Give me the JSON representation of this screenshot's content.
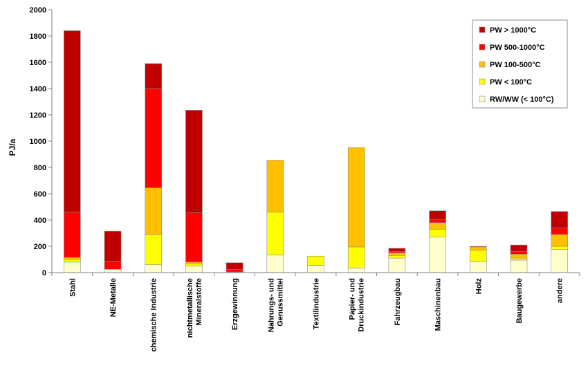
{
  "chart_data": {
    "type": "bar",
    "stacked": true,
    "title": "",
    "xlabel": "",
    "ylabel": "PJ/a",
    "ylim": [
      0,
      2000
    ],
    "yticks": [
      0,
      200,
      400,
      600,
      800,
      1000,
      1200,
      1400,
      1600,
      1800,
      2000
    ],
    "grid": false,
    "legend_position": "top-right",
    "categories": [
      "Stahl",
      "NE-Metalle",
      "chemische Industrie",
      "nichtmetallische Mineralstoffe",
      "Erzgewinnung",
      "Nahrungs- und Genussmittel",
      "Textilindustrie",
      "Papier- und Druckindustrie",
      "Fahrzeugbau",
      "Maschinenbau",
      "Holz",
      "Baugewerbe",
      "andere"
    ],
    "category_lines": [
      [
        "Stahl"
      ],
      [
        "NE-Metalle"
      ],
      [
        "chemische Industrie"
      ],
      [
        "nichtmetallische",
        "Mineralstoffe"
      ],
      [
        "Erzgewinnung"
      ],
      [
        "Nahrungs- und",
        "Genussmittel"
      ],
      [
        "Textilindustrie"
      ],
      [
        "Papier- und",
        "Druckindustrie"
      ],
      [
        "Fahrzeugbau"
      ],
      [
        "Maschinenbau"
      ],
      [
        "Holz"
      ],
      [
        "Baugewerbe"
      ],
      [
        "andere"
      ]
    ],
    "series": [
      {
        "name": "RW/WW (< 100°C)",
        "color": "#ffffcc",
        "values": [
          80,
          25,
          60,
          50,
          5,
          135,
          55,
          35,
          110,
          270,
          85,
          95,
          175
        ]
      },
      {
        "name": "PW < 100°C",
        "color": "#ffff00",
        "values": [
          20,
          0,
          230,
          15,
          0,
          325,
          70,
          160,
          20,
          60,
          85,
          15,
          25
        ]
      },
      {
        "name": "PW 100-500°C",
        "color": "#ffc000",
        "values": [
          15,
          0,
          355,
          15,
          0,
          395,
          0,
          755,
          20,
          50,
          25,
          30,
          90
        ]
      },
      {
        "name": "PW 500-1000°C",
        "color": "#ff0000",
        "values": [
          345,
          60,
          755,
          375,
          20,
          0,
          0,
          0,
          10,
          25,
          5,
          20,
          50
        ]
      },
      {
        "name": "PW > 1000°C",
        "color": "#c00000",
        "values": [
          1380,
          230,
          190,
          780,
          50,
          0,
          0,
          0,
          25,
          65,
          0,
          50,
          125
        ]
      }
    ]
  }
}
